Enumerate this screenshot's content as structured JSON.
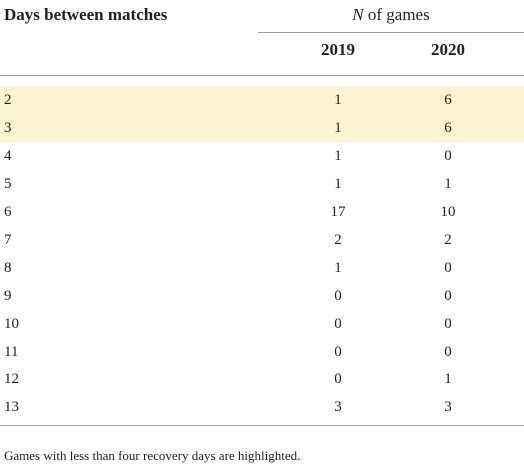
{
  "table": {
    "header": {
      "first": "Days between matches",
      "group_italic": "N",
      "group_rest": "of games",
      "columns": [
        "2019",
        "2020"
      ]
    },
    "highlight_color": "#fdf3d0",
    "rows": [
      {
        "cells": [
          2,
          1,
          6
        ],
        "highlighted": true
      },
      {
        "cells": [
          3,
          1,
          6
        ],
        "highlighted": true
      },
      {
        "cells": [
          4,
          1,
          0
        ],
        "highlighted": false
      },
      {
        "cells": [
          5,
          1,
          1
        ],
        "highlighted": false
      },
      {
        "cells": [
          6,
          17,
          10
        ],
        "highlighted": false
      },
      {
        "cells": [
          7,
          2,
          2
        ],
        "highlighted": false
      },
      {
        "cells": [
          8,
          1,
          0
        ],
        "highlighted": false
      },
      {
        "cells": [
          9,
          0,
          0
        ],
        "highlighted": false
      },
      {
        "cells": [
          10,
          0,
          0
        ],
        "highlighted": false
      },
      {
        "cells": [
          11,
          0,
          0
        ],
        "highlighted": false
      },
      {
        "cells": [
          12,
          0,
          1
        ],
        "highlighted": false
      },
      {
        "cells": [
          13,
          3,
          3
        ],
        "highlighted": false
      }
    ],
    "footnote": "Games with less than four recovery days are highlighted."
  }
}
